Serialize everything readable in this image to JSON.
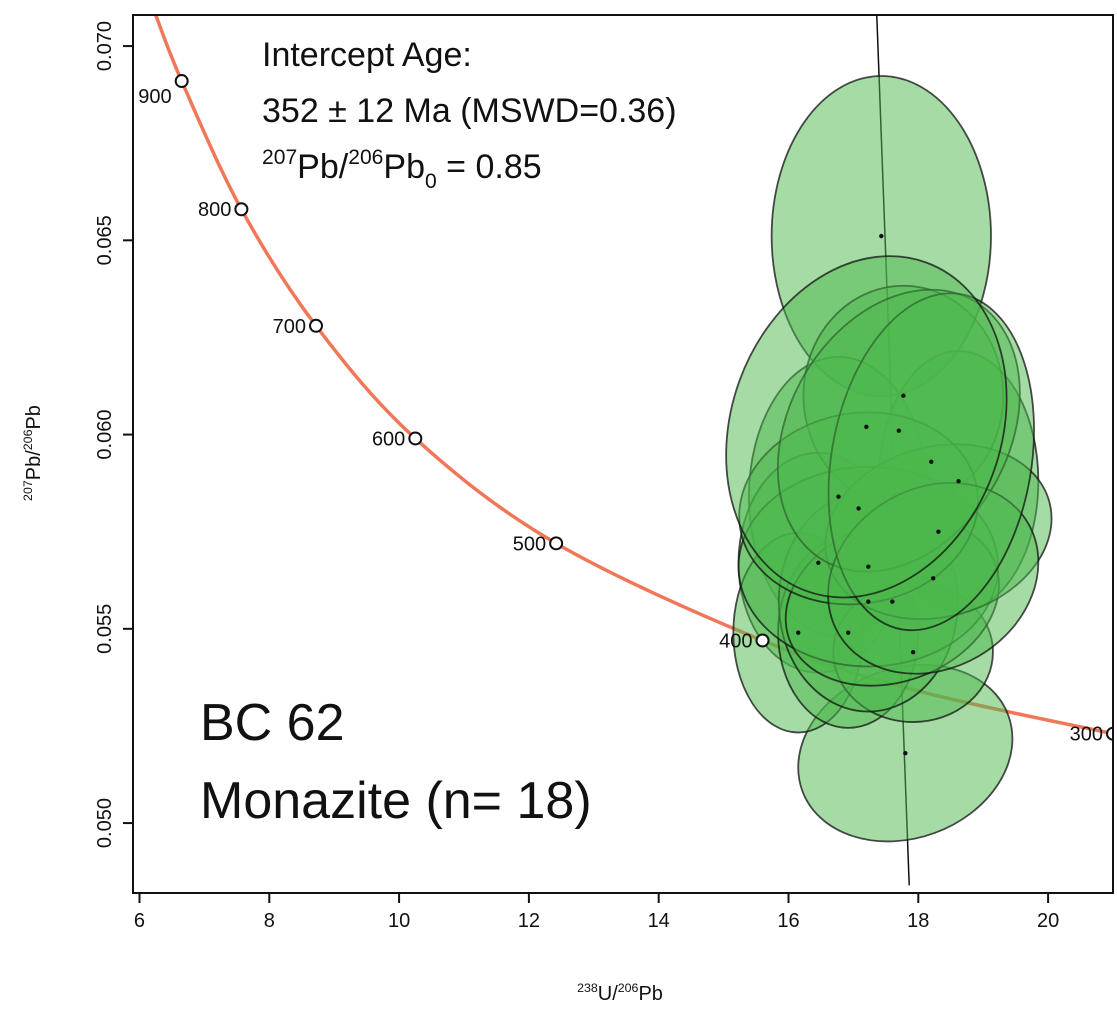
{
  "chart_data": {
    "type": "concordia",
    "annotations": {
      "line1": "Intercept Age:",
      "line2": "352 ± 12 Ma (MSWD=0.36)",
      "line3": [
        "207",
        "Pb/",
        "206",
        "Pb",
        "0",
        " = 0.85"
      ],
      "sample": "BC 62",
      "mineral": "Monazite (n= 18)"
    },
    "x_label": [
      "238",
      "U/",
      "206",
      "Pb"
    ],
    "y_label": [
      "207",
      "Pb/",
      "206",
      "Pb"
    ],
    "xlim": [
      5.9,
      21
    ],
    "ylim": [
      0.0482,
      0.0708
    ],
    "xticks": [
      6,
      8,
      10,
      12,
      14,
      16,
      18,
      20
    ],
    "yticks": [
      {
        "value": 0.05,
        "label": "0.050"
      },
      0.055,
      {
        "value": 0.06,
        "label": "0.060"
      },
      0.065,
      {
        "value": 0.07,
        "label": "0.070"
      }
    ],
    "concordia": {
      "color": "#f07858",
      "x": [
        6.25,
        6.65,
        7.57,
        8.72,
        10.25,
        12.42,
        15.6,
        18,
        21
      ],
      "y": [
        0.0708,
        0.0691,
        0.0658,
        0.0628,
        0.0599,
        0.0572,
        0.0547,
        0.0534,
        0.0523
      ]
    },
    "age_markers": {
      "ages": [
        900,
        800,
        700,
        600,
        500,
        400,
        300
      ],
      "x": [
        6.65,
        7.57,
        8.72,
        10.25,
        12.42,
        15.6,
        21
      ],
      "y": [
        0.0691,
        0.0658,
        0.0628,
        0.0599,
        0.0572,
        0.0547,
        0.0523
      ]
    },
    "intercept_line": {
      "x": [
        17.36,
        17.86
      ],
      "y": [
        0.0708,
        0.0484
      ]
    },
    "ellipse_color": "#4cb84c",
    "ellipses": [
      {
        "x": 17.43,
        "y": 0.06511,
        "sx": 1.69,
        "sy": 0.00412,
        "angle": 0
      },
      {
        "x": 17.8,
        "y": 0.0518,
        "sx": 1.69,
        "sy": 0.00219,
        "angle": -20
      },
      {
        "x": 16.77,
        "y": 0.0584,
        "sx": 1.38,
        "sy": 0.0036,
        "angle": 0
      },
      {
        "x": 16.46,
        "y": 0.0567,
        "sx": 1.23,
        "sy": 0.00283,
        "angle": 0
      },
      {
        "x": 16.15,
        "y": 0.0549,
        "sx": 1.0,
        "sy": 0.00257,
        "angle": 0
      },
      {
        "x": 16.92,
        "y": 0.0549,
        "sx": 1.08,
        "sy": 0.00245,
        "angle": 0
      },
      {
        "x": 17.92,
        "y": 0.0544,
        "sx": 1.23,
        "sy": 0.0018,
        "angle": 0
      },
      {
        "x": 18.62,
        "y": 0.0588,
        "sx": 1.23,
        "sy": 0.00335,
        "angle": 0
      },
      {
        "x": 17.77,
        "y": 0.061,
        "sx": 1.54,
        "sy": 0.00283,
        "angle": 0
      },
      {
        "x": 17.23,
        "y": 0.0557,
        "sx": 1.38,
        "sy": 0.00283,
        "angle": 0
      },
      {
        "x": 17.23,
        "y": 0.0566,
        "sx": 2.0,
        "sy": 0.00257,
        "angle": 0
      },
      {
        "x": 17.6,
        "y": 0.0557,
        "sx": 1.69,
        "sy": 0.00206,
        "angle": -20
      },
      {
        "x": 18.31,
        "y": 0.0575,
        "sx": 1.77,
        "sy": 0.00219,
        "angle": -15
      },
      {
        "x": 17.08,
        "y": 0.0581,
        "sx": 1.85,
        "sy": 0.00245,
        "angle": -10
      },
      {
        "x": 17.7,
        "y": 0.0601,
        "sx": 1.69,
        "sy": 0.00386,
        "angle": 30
      },
      {
        "x": 18.23,
        "y": 0.0563,
        "sx": 1.69,
        "sy": 0.00232,
        "angle": -30
      },
      {
        "x": 18.2,
        "y": 0.0593,
        "sx": 1.54,
        "sy": 0.00438,
        "angle": 10
      },
      {
        "x": 17.2,
        "y": 0.0602,
        "sx": 2.08,
        "sy": 0.0045,
        "angle": 20
      }
    ]
  }
}
